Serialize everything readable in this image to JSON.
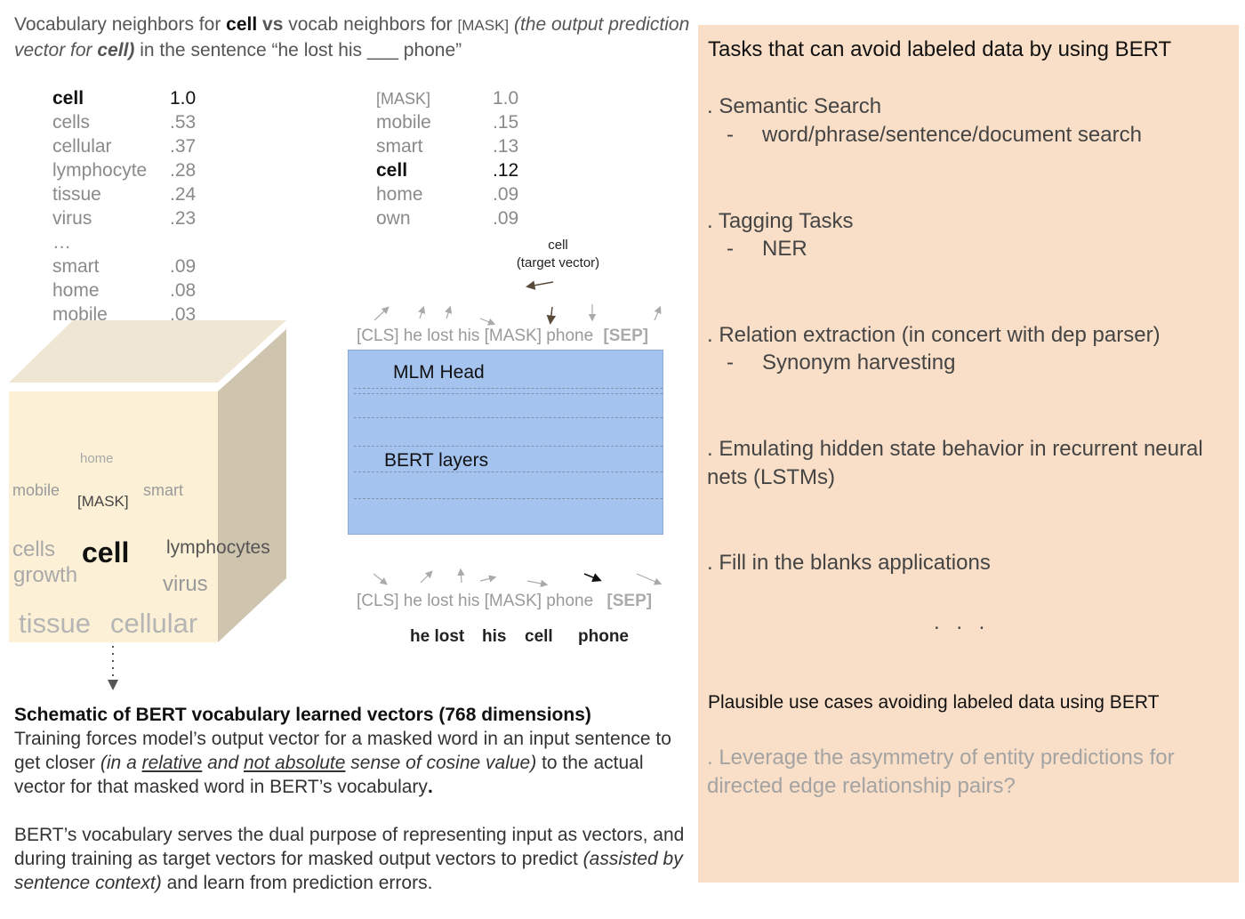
{
  "header": {
    "t1": "Vocabulary  neighbors for ",
    "t2": "cell",
    "t3": " vs",
    "t4": " vocab neighbors for ",
    "t5": "[MASK]",
    "t6": "(the output prediction vector for ",
    "t7": "cell)",
    "t8": " in the  sentence “he lost his ___ phone”"
  },
  "left_list": [
    {
      "word": "cell",
      "value": "1.0",
      "bold": true
    },
    {
      "word": "cells",
      "value": ".53"
    },
    {
      "word": "cellular",
      "value": ".37"
    },
    {
      "word": "lymphocyte",
      "value": ".28"
    },
    {
      "word": "tissue",
      "value": ".24"
    },
    {
      "word": "virus",
      "value": ".23"
    },
    {
      "word": "…",
      "value": ""
    },
    {
      "word": "smart",
      "value": ".09"
    },
    {
      "word": "home",
      "value": ".08"
    },
    {
      "word": "mobile",
      "value": ".03"
    }
  ],
  "mid_list": [
    {
      "word": "[MASK]",
      "value": "1.0"
    },
    {
      "word": "mobile",
      "value": ".15"
    },
    {
      "word": "smart",
      "value": ".13"
    },
    {
      "word": "cell",
      "value": ".12",
      "bold": true
    },
    {
      "word": "home",
      "value": ".09"
    },
    {
      "word": "own",
      "value": ".09"
    }
  ],
  "cube_words": {
    "home": "home",
    "mobile": "mobile",
    "mask": "[MASK]",
    "smart": "smart",
    "cells": "cells",
    "cell": "cell",
    "lymphocytes": "lymphocytes",
    "growth": "growth",
    "virus": "virus",
    "tissue": "tissue",
    "cellular": "cellular"
  },
  "target": {
    "line1": "cell",
    "line2": "(target vector)"
  },
  "top_tokens": {
    "seq": "[CLS] he lost his [MASK] phone ",
    "sep": "[SEP]"
  },
  "bottom_tokens": {
    "seq": "[CLS] he lost  his [MASK] phone ",
    "sep": "[SEP]"
  },
  "bottom_words": [
    "he lost",
    "his",
    "cell",
    "phone"
  ],
  "bert_box": {
    "mlm_head": "MLM Head",
    "bert_layers": "BERT layers"
  },
  "caption": {
    "bold": "Schematic of BERT vocabulary learned vectors (768 dimensions)",
    "p1a": "Training forces model’s output vector for a masked word in an input sentence to get closer ",
    "p1b": "(in a ",
    "p1c": "relative",
    "p1d": " and ",
    "p1e": "not absolute",
    "p1f": " sense of cosine value)",
    "p1g": " to the actual vector for that masked word in BERT’s vocabulary",
    "p1h": ".",
    "p2a": "BERT’s vocabulary serves the dual purpose of representing input as vectors, and during training as target vectors for masked output vectors to predict ",
    "p2b": "(assisted by sentence context)",
    "p2c": " and learn from prediction errors."
  },
  "panel": {
    "title": "Tasks that can avoid labeled data by using BERT",
    "items": [
      {
        "text": ". Semantic Search",
        "sub": "word/phrase/sentence/document search"
      },
      {
        "text": ". Tagging Tasks",
        "sub": "NER"
      },
      {
        "text": ". Relation extraction (in concert with dep parser)",
        "sub": "Synonym harvesting"
      },
      {
        "text": ". Emulating hidden state behavior in recurrent neural nets (LSTMs)",
        "sub": ""
      },
      {
        "text": ". Fill in the blanks applications",
        "sub": ""
      }
    ],
    "sub_dash": "-",
    "ellipsis": ". . .",
    "plausible": "Plausible use cases avoiding labeled data using BERT",
    "leverage": ". Leverage the asymmetry of entity predictions for directed edge relationship pairs?"
  },
  "colors": {
    "panel_bg": "#fadfc8",
    "bert_box": "#a4c3ef",
    "cube_front": "#fcf1d6",
    "cube_side": "#cfc4ad"
  }
}
